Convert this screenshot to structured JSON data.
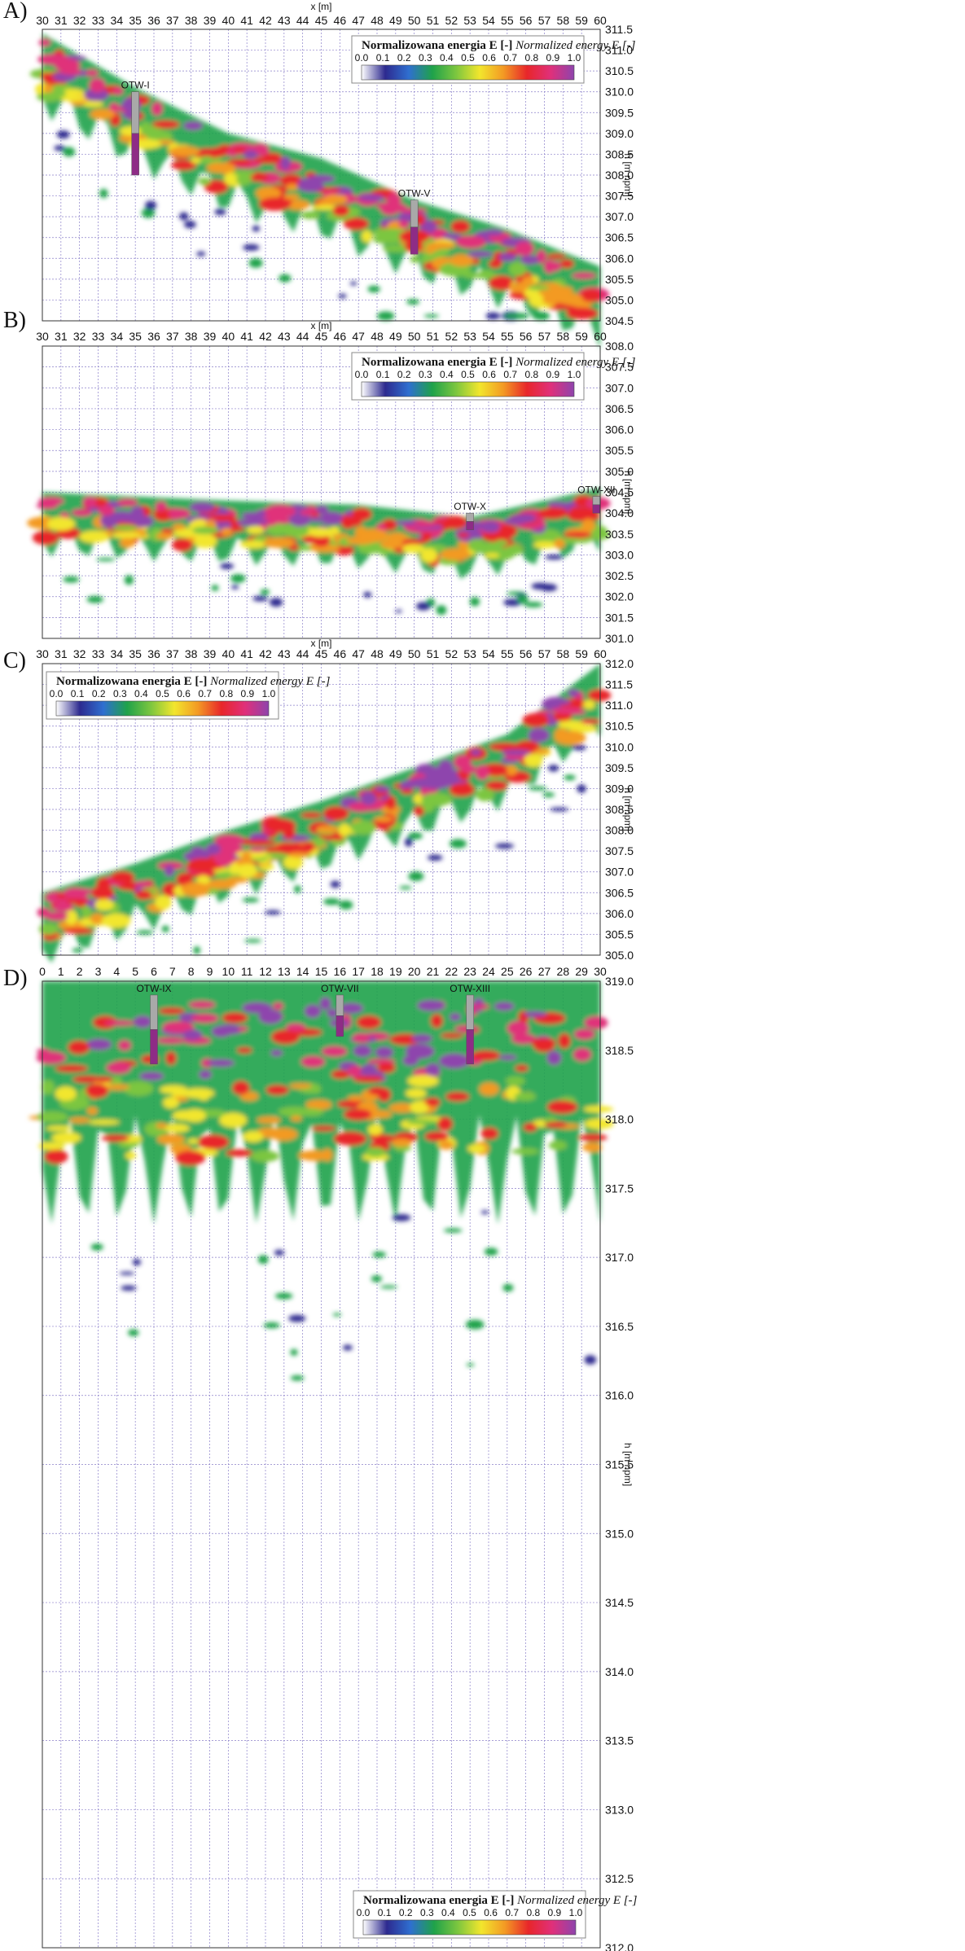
{
  "colors": {
    "colormap": [
      "#ffffff",
      "#2d2a8f",
      "#2f6fd0",
      "#1fa24a",
      "#7cc63f",
      "#f2e62d",
      "#f39a24",
      "#e8262a",
      "#e0307a",
      "#8e44ad"
    ],
    "grid": "#8a7fc9",
    "borehole_gray": "#a9a9a9",
    "borehole_purple": "#8e2c86",
    "borehole_green": "#28a745"
  },
  "chart_data": [
    {
      "panel": "A)",
      "type": "heatmap",
      "xlabel": "x [m]",
      "ylabel": "h [m npm]",
      "xlim": [
        30,
        60
      ],
      "ylim": [
        304.5,
        311.5
      ],
      "xticks": [
        "30",
        "31",
        "32",
        "33",
        "34",
        "35",
        "36",
        "37",
        "38",
        "39",
        "40",
        "41",
        "42",
        "43",
        "44",
        "45",
        "46",
        "47",
        "48",
        "49",
        "50",
        "51",
        "52",
        "53",
        "54",
        "55",
        "56",
        "57",
        "58",
        "59",
        "60"
      ],
      "yticks": [
        "304.5",
        "305.0",
        "305.5",
        "306.0",
        "306.5",
        "307.0",
        "307.5",
        "308.0",
        "308.5",
        "309.0",
        "309.5",
        "310.0",
        "310.5",
        "311.0",
        "311.5"
      ],
      "surface": [
        [
          30,
          311.4
        ],
        [
          35,
          310.1
        ],
        [
          40,
          309.0
        ],
        [
          45,
          308.4
        ],
        [
          50,
          307.4
        ],
        [
          55,
          306.7
        ],
        [
          60,
          305.8
        ]
      ],
      "thickness_m": 1.8,
      "grid": true,
      "legend": {
        "title": "Normalizowana energia E [-]",
        "title_en": "Normalized energy E [-]",
        "ticks": [
          "0.0",
          "0.1",
          "0.2",
          "0.3",
          "0.4",
          "0.5",
          "0.6",
          "0.7",
          "0.8",
          "0.9",
          "1.0"
        ],
        "placement": "top-right"
      },
      "boreholes": [
        {
          "label": "OTW-I",
          "x": 35,
          "top": 310.0,
          "bottom": 308.0
        },
        {
          "label": "OTW-V",
          "x": 50,
          "top": 307.4,
          "bottom": 306.1
        }
      ]
    },
    {
      "panel": "B)",
      "type": "heatmap",
      "xlabel": "x [m]",
      "ylabel": "h [m npm]",
      "xlim": [
        30,
        60
      ],
      "ylim": [
        301.0,
        308.0
      ],
      "xticks": [
        "30",
        "31",
        "32",
        "33",
        "34",
        "35",
        "36",
        "37",
        "38",
        "39",
        "40",
        "41",
        "42",
        "43",
        "44",
        "45",
        "46",
        "47",
        "48",
        "49",
        "50",
        "51",
        "52",
        "53",
        "54",
        "55",
        "56",
        "57",
        "58",
        "59",
        "60"
      ],
      "yticks": [
        "301.0",
        "301.5",
        "302.0",
        "302.5",
        "303.0",
        "303.5",
        "304.0",
        "304.5",
        "305.0",
        "305.5",
        "306.0",
        "306.5",
        "307.0",
        "307.5",
        "308.0"
      ],
      "surface": [
        [
          30,
          304.5
        ],
        [
          40,
          304.3
        ],
        [
          47,
          304.2
        ],
        [
          53,
          303.9
        ],
        [
          57,
          304.3
        ],
        [
          60,
          304.6
        ]
      ],
      "thickness_m": 1.4,
      "grid": true,
      "legend": {
        "title": "Normalizowana energia E [-]",
        "title_en": "Normalized energy E [-]",
        "ticks": [
          "0.0",
          "0.1",
          "0.2",
          "0.3",
          "0.4",
          "0.5",
          "0.6",
          "0.7",
          "0.8",
          "0.9",
          "1.0"
        ],
        "placement": "top-right"
      },
      "boreholes": [
        {
          "label": "OTW-X",
          "x": 53,
          "top": 304.0,
          "bottom": 303.6
        },
        {
          "label": "OTW-XII",
          "x": 59.8,
          "top": 304.4,
          "bottom": 304.0
        }
      ]
    },
    {
      "panel": "C)",
      "type": "heatmap",
      "xlabel": "x [m]",
      "ylabel": "h [m npm]",
      "xlim": [
        30,
        60
      ],
      "ylim": [
        305.0,
        312.0
      ],
      "xticks": [
        "30",
        "31",
        "32",
        "33",
        "34",
        "35",
        "36",
        "37",
        "38",
        "39",
        "40",
        "41",
        "42",
        "43",
        "44",
        "45",
        "46",
        "47",
        "48",
        "49",
        "50",
        "51",
        "52",
        "53",
        "54",
        "55",
        "56",
        "57",
        "58",
        "59",
        "60"
      ],
      "yticks": [
        "305.0",
        "305.5",
        "306.0",
        "306.5",
        "307.0",
        "307.5",
        "308.0",
        "308.5",
        "309.0",
        "309.5",
        "310.0",
        "310.5",
        "311.0",
        "311.5",
        "312.0"
      ],
      "surface": [
        [
          30,
          306.5
        ],
        [
          35,
          307.2
        ],
        [
          40,
          308.0
        ],
        [
          45,
          308.7
        ],
        [
          50,
          309.5
        ],
        [
          55,
          310.3
        ],
        [
          60,
          312.0
        ]
      ],
      "thickness_m": 1.6,
      "grid": true,
      "legend": {
        "title": "Normalizowana energia E [-]",
        "title_en": "Normalized energy E [-]",
        "ticks": [
          "0.0",
          "0.1",
          "0.2",
          "0.3",
          "0.4",
          "0.5",
          "0.6",
          "0.7",
          "0.8",
          "0.9",
          "1.0"
        ],
        "placement": "top-left"
      },
      "boreholes": []
    },
    {
      "panel": "D)",
      "type": "heatmap",
      "xlabel": "",
      "ylabel": "h [m npm]",
      "xlim": [
        0,
        30
      ],
      "ylim": [
        312.0,
        319.0
      ],
      "xticks": [
        "0",
        "1",
        "2",
        "3",
        "4",
        "5",
        "6",
        "7",
        "8",
        "9",
        "10",
        "11",
        "12",
        "13",
        "14",
        "15",
        "16",
        "17",
        "18",
        "19",
        "20",
        "21",
        "22",
        "23",
        "24",
        "25",
        "26",
        "27",
        "28",
        "29",
        "30"
      ],
      "yticks": [
        "312.0",
        "312.5",
        "313.0",
        "313.5",
        "314.0",
        "314.5",
        "315.0",
        "315.5",
        "316.0",
        "316.5",
        "317.0",
        "317.5",
        "318.0",
        "318.5",
        "319.0"
      ],
      "surface": [
        [
          0,
          319.0
        ],
        [
          30,
          319.0
        ]
      ],
      "thickness_m": 1.6,
      "grid": true,
      "legend": {
        "title": "Normalizowana energia E [-]",
        "title_en": "Normalized energy E [-]",
        "ticks": [
          "0.0",
          "0.1",
          "0.2",
          "0.3",
          "0.4",
          "0.5",
          "0.6",
          "0.7",
          "0.8",
          "0.9",
          "1.0"
        ],
        "placement": "bottom-right"
      },
      "boreholes": [
        {
          "label": "OTW-IX",
          "x": 6,
          "top": 318.9,
          "bottom": 318.4
        },
        {
          "label": "OTW-VII",
          "x": 16,
          "top": 318.9,
          "bottom": 318.6
        },
        {
          "label": "OTW-XIII",
          "x": 23,
          "top": 318.9,
          "bottom": 318.4
        }
      ]
    }
  ]
}
